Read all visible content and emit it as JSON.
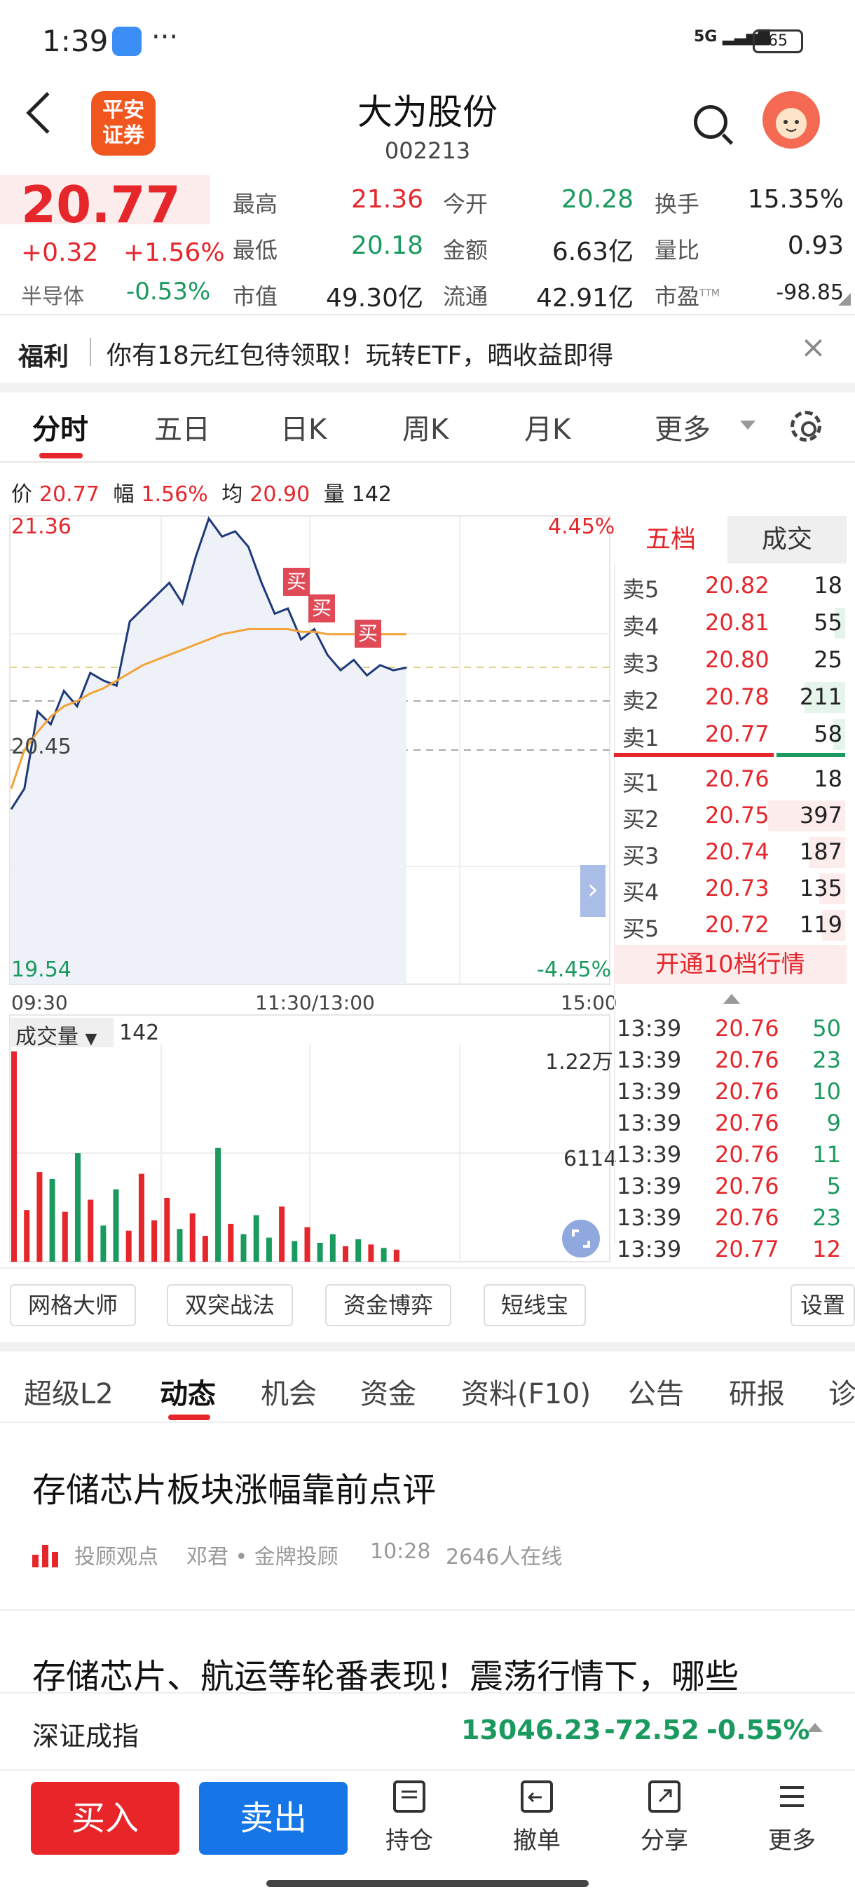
{
  "status": {
    "time": "1:39",
    "dots": "···",
    "signal": "5G",
    "battery": "65"
  },
  "header": {
    "logo": "平安\n证券",
    "title": "大为股份",
    "code": "002213"
  },
  "quote": {
    "price": "20.77",
    "change": "+0.32",
    "change_pct": "+1.56%",
    "sector": "半导体",
    "sector_change": "-0.53%",
    "stats": [
      {
        "label": "最高",
        "value": "21.36"
      },
      {
        "label": "今开",
        "value": "20.28"
      },
      {
        "label": "换手",
        "value": "15.35%"
      },
      {
        "label": "最低",
        "value": "20.18"
      },
      {
        "label": "金额",
        "value": "6.63亿"
      },
      {
        "label": "量比",
        "value": "0.93"
      },
      {
        "label": "市值",
        "value": "49.30亿"
      },
      {
        "label": "流通",
        "value": "42.91亿"
      },
      {
        "label": "市盈",
        "value": "-98.85",
        "sup": "TTM"
      }
    ]
  },
  "promo": {
    "tag": "福利",
    "text": "你有18元红包待领取！玩转ETF，晒收益即得",
    "close": "×"
  },
  "chart_tabs": [
    "分时",
    "五日",
    "日K",
    "周K",
    "月K",
    "更多"
  ],
  "infoline": {
    "price_label": "价",
    "price": "20.77",
    "amp_label": "幅",
    "amp": "1.56%",
    "avg_label": "均",
    "avg": "20.90",
    "vol_label": "量",
    "vol": "142"
  },
  "chart": {
    "y_top_left": "21.36",
    "y_mid_left": "20.45",
    "y_bottom_left": "19.54",
    "y_top_right": "4.45%",
    "y_bottom_right": "-4.45%",
    "x_start": "09:30",
    "x_mid": "11:30/13:00",
    "x_end": "15:00",
    "buy_marker": "买",
    "vol_selector": "成交量",
    "vol_value": "142",
    "vol_max": "1.22万",
    "vol_mid": "6114",
    "expand": "›"
  },
  "chart_data": {
    "type": "line",
    "ylim": [
      19.54,
      21.36
    ],
    "series": [
      {
        "values": [
          20.22,
          20.3,
          20.6,
          20.55,
          20.68,
          20.62,
          20.75,
          20.72,
          20.7,
          20.95,
          21.0,
          21.05,
          21.1,
          21.02,
          21.2,
          21.35,
          21.28,
          21.3,
          21.24,
          21.1,
          20.98,
          21.0,
          20.88,
          20.92,
          20.82,
          20.76,
          20.8,
          20.74,
          20.78,
          20.76,
          20.77
        ]
      },
      {
        "values": [
          20.3,
          20.45,
          20.52,
          20.58,
          20.62,
          20.64,
          20.67,
          20.69,
          20.72,
          20.75,
          20.78,
          20.8,
          20.82,
          20.84,
          20.86,
          20.88,
          20.9,
          20.91,
          20.92,
          20.92,
          20.92,
          20.92,
          20.91,
          20.91,
          20.9,
          20.9,
          20.9,
          20.9,
          20.9,
          20.9,
          20.9
        ]
      }
    ],
    "volume": [
      12200,
      3000,
      5200,
      4800,
      2900,
      6300,
      3600,
      2100,
      4200,
      1800,
      5100,
      2400,
      3700,
      1900,
      2800,
      1500,
      6600,
      2200,
      1600,
      2700,
      1400,
      3200,
      1200,
      2000,
      1100,
      1600,
      900,
      1300,
      1000,
      800,
      700
    ]
  },
  "orderbook": {
    "tab_active": "五档",
    "tab_other": "成交",
    "asks": [
      {
        "label": "卖5",
        "price": "20.82",
        "vol": "18",
        "bar": 0.0
      },
      {
        "label": "卖4",
        "price": "20.81",
        "vol": "55",
        "bar": 0.14
      },
      {
        "label": "卖3",
        "price": "20.80",
        "vol": "25",
        "bar": 0.0
      },
      {
        "label": "卖2",
        "price": "20.78",
        "vol": "211",
        "bar": 0.53
      },
      {
        "label": "卖1",
        "price": "20.77",
        "vol": "58",
        "bar": 0.15
      }
    ],
    "bids": [
      {
        "label": "买1",
        "price": "20.76",
        "vol": "18",
        "bar": 0.0
      },
      {
        "label": "买2",
        "price": "20.75",
        "vol": "397",
        "bar": 1.0
      },
      {
        "label": "买3",
        "price": "20.74",
        "vol": "187",
        "bar": 0.47
      },
      {
        "label": "买4",
        "price": "20.73",
        "vol": "135",
        "bar": 0.34
      },
      {
        "label": "买5",
        "price": "20.72",
        "vol": "119",
        "bar": 0.3
      }
    ],
    "open_l2": "开通10档行情",
    "ticks": [
      {
        "time": "13:39",
        "price": "20.76",
        "vol": "50",
        "dir": "down"
      },
      {
        "time": "13:39",
        "price": "20.76",
        "vol": "23",
        "dir": "down"
      },
      {
        "time": "13:39",
        "price": "20.76",
        "vol": "10",
        "dir": "down"
      },
      {
        "time": "13:39",
        "price": "20.76",
        "vol": "9",
        "dir": "down"
      },
      {
        "time": "13:39",
        "price": "20.76",
        "vol": "11",
        "dir": "down"
      },
      {
        "time": "13:39",
        "price": "20.76",
        "vol": "5",
        "dir": "down"
      },
      {
        "time": "13:39",
        "price": "20.76",
        "vol": "23",
        "dir": "down"
      },
      {
        "time": "13:39",
        "price": "20.77",
        "vol": "12",
        "dir": "up"
      }
    ]
  },
  "tools": [
    "网格大师",
    "双突战法",
    "资金博弈",
    "短线宝",
    "设置"
  ],
  "section_tabs": [
    "超级L2",
    "动态",
    "机会",
    "资金",
    "资料(F10)",
    "公告",
    "研报",
    "诊"
  ],
  "news": [
    {
      "title": "存储芯片板块涨幅靠前点评",
      "source": "投顾观点",
      "author": "邓君 • 金牌投顾",
      "time": "10:28",
      "online": "2646人在线"
    },
    {
      "title": "存储芯片、航运等轮番表现！震荡行情下，哪些"
    }
  ],
  "index": {
    "name": "深证成指",
    "value": "13046.23",
    "change": "-72.52",
    "change_pct": "-0.55%"
  },
  "bottom": {
    "buy": "买入",
    "sell": "卖出",
    "nav": [
      "持仓",
      "撤单",
      "分享",
      "更多"
    ]
  },
  "colors": {
    "up": "#e5262b",
    "down": "#1a9a5f",
    "price_line": "#1f3a7a",
    "avg_line": "#f2a33a",
    "buy_button": "#e8262a",
    "sell_button": "#1676e8"
  }
}
